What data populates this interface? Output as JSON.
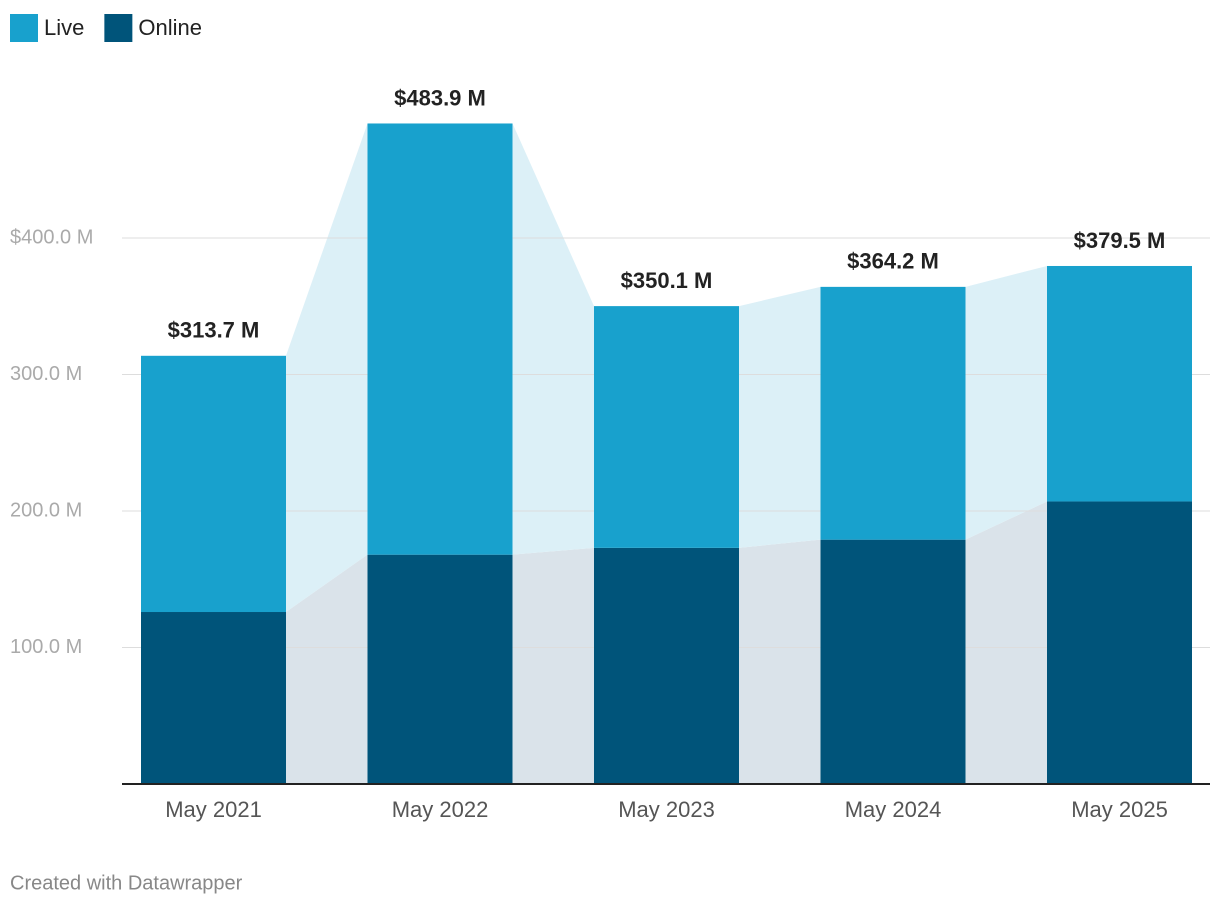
{
  "chart_data": {
    "type": "stacked-bar",
    "categories": [
      "May 2021",
      "May 2022",
      "May 2023",
      "May 2024",
      "May 2025"
    ],
    "series": [
      {
        "name": "Online",
        "color": "#00547a",
        "values": [
          126,
          168,
          173,
          179,
          207
        ]
      },
      {
        "name": "Live",
        "color": "#18a1cd",
        "values": [
          187.7,
          315.9,
          177.1,
          185.2,
          172.5
        ]
      }
    ],
    "totals": {
      "values": [
        313.7,
        483.9,
        350.1,
        364.2,
        379.5
      ],
      "value_labels": [
        "$313.7 M",
        "$483.9 M",
        "$350.1 M",
        "$364.2 M",
        "$379.5 M"
      ]
    },
    "ylim": [
      0,
      500
    ],
    "yticks": [
      {
        "value": 100,
        "label": "100.0 M"
      },
      {
        "value": 200,
        "label": "200.0 M"
      },
      {
        "value": 300,
        "label": "300.0 M"
      },
      {
        "value": 400,
        "label": "$400.0 M"
      }
    ],
    "grid": true,
    "legend": "top-left",
    "footer": "Created with Datawrapper"
  }
}
